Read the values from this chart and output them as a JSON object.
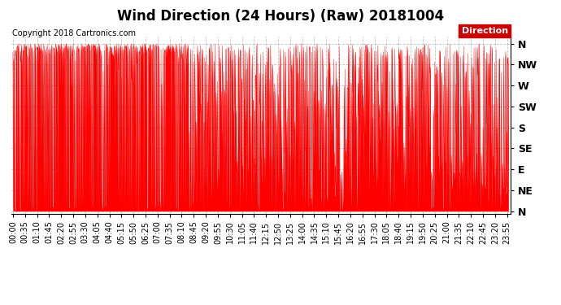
{
  "title": "Wind Direction (24 Hours) (Raw) 20181004",
  "copyright": "Copyright 2018 Cartronics.com",
  "legend_label": "Direction",
  "legend_bg": "#cc0000",
  "legend_text_color": "#ffffff",
  "line_color": "#ff0000",
  "background_color": "#ffffff",
  "grid_color": "#b0b0b0",
  "ytick_positions": [
    360,
    315,
    270,
    225,
    180,
    135,
    90,
    45,
    0
  ],
  "ytick_labels": [
    "N",
    "NW",
    "W",
    "SW",
    "S",
    "SE",
    "E",
    "NE",
    "N"
  ],
  "ylim": [
    -5,
    375
  ],
  "title_fontsize": 12,
  "copyright_fontsize": 7,
  "tick_fontsize": 7,
  "xtick_interval_min": 35,
  "data_interval_min": 1,
  "total_minutes": 1440,
  "seed": 123
}
